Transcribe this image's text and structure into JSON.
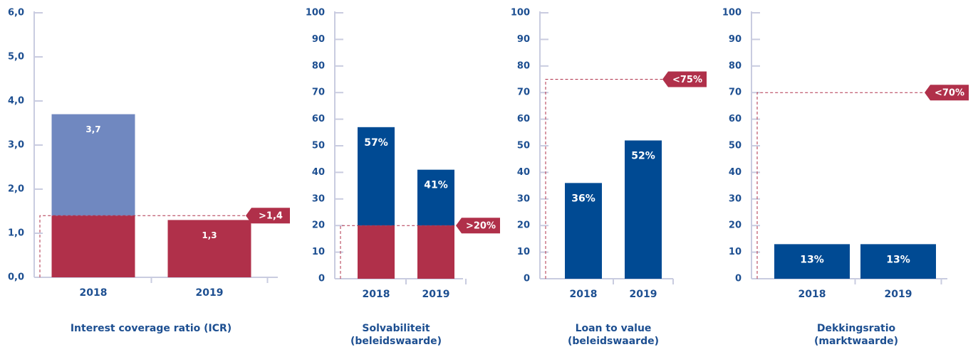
{
  "chart_data": [
    {
      "type": "bar",
      "title": [
        "Interest coverage ratio (ICR)"
      ],
      "categories": [
        "2018",
        "2019"
      ],
      "values": [
        3.7,
        1.3
      ],
      "value_labels": [
        "3,7",
        "1,3"
      ],
      "color": "#7088c0",
      "below_color": "#b0304a",
      "ylim": [
        0,
        6
      ],
      "yticks": [
        {
          "value": 0,
          "label": "0,0"
        },
        {
          "value": 1,
          "label": "1,0"
        },
        {
          "value": 2,
          "label": "2,0"
        },
        {
          "value": 3,
          "label": "3,0"
        },
        {
          "value": 4,
          "label": "4,0"
        },
        {
          "value": 5,
          "label": "5,0"
        },
        {
          "value": 6,
          "label": "6,0"
        }
      ],
      "threshold": 1.4,
      "threshold_label": ">1,4"
    },
    {
      "type": "bar",
      "title": [
        "Solvabiliteit",
        "(beleidswaarde)"
      ],
      "categories": [
        "2018",
        "2019"
      ],
      "values": [
        57,
        41
      ],
      "value_labels": [
        "57%",
        "41%"
      ],
      "color": "#004a93",
      "below_color": "#b0304a",
      "ylim": [
        0,
        100
      ],
      "yticks": [
        0,
        10,
        20,
        30,
        40,
        50,
        60,
        70,
        80,
        90,
        100
      ],
      "threshold": 20,
      "threshold_label": ">20%"
    },
    {
      "type": "bar",
      "title": [
        "Loan to value",
        "(beleidswaarde)"
      ],
      "categories": [
        "2018",
        "2019"
      ],
      "values": [
        36,
        52
      ],
      "value_labels": [
        "36%",
        "52%"
      ],
      "color": "#004a93",
      "ylim": [
        0,
        100
      ],
      "yticks": [
        0,
        10,
        20,
        30,
        40,
        50,
        60,
        70,
        80,
        90,
        100
      ],
      "threshold": 75,
      "threshold_label": "<75%"
    },
    {
      "type": "bar",
      "title": [
        "Dekkingsratio",
        "(marktwaarde)"
      ],
      "categories": [
        "2018",
        "2019"
      ],
      "values": [
        13,
        13
      ],
      "value_labels": [
        "13%",
        "13%"
      ],
      "color": "#004a93",
      "ylim": [
        0,
        100
      ],
      "yticks": [
        0,
        10,
        20,
        30,
        40,
        50,
        60,
        70,
        80,
        90,
        100
      ],
      "threshold": 70,
      "threshold_label": "<70%"
    }
  ]
}
